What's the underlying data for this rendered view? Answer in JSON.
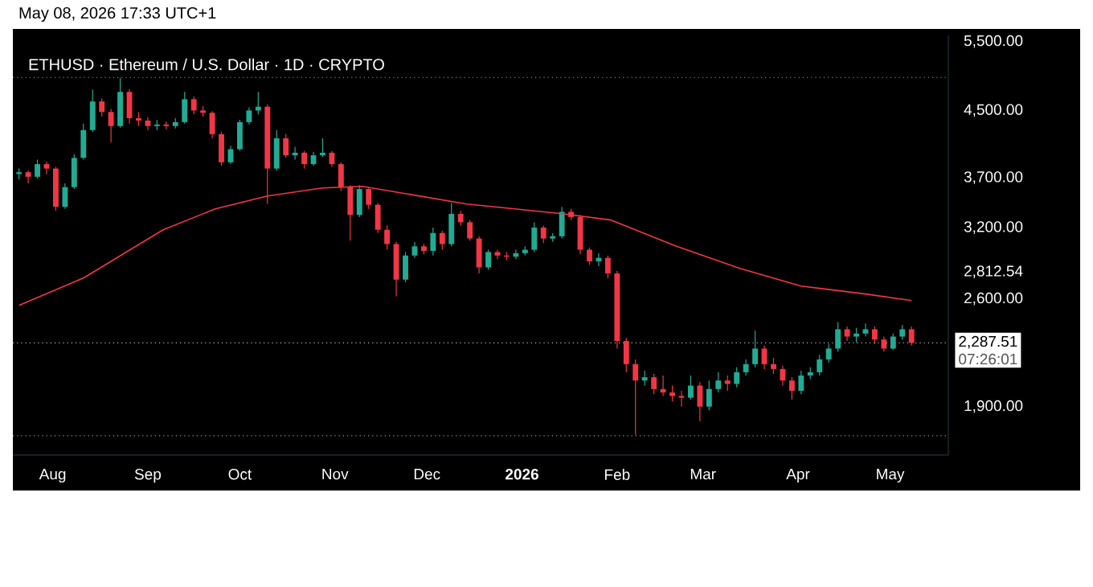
{
  "chart_data": {
    "type": "candlestick",
    "title": "ETHUSD · Ethereum / U.S. Dollar · 1D · CRYPTO",
    "annotations": [
      "May 08, 2026 17:33 UTC+1",
      "07:26:01"
    ],
    "log": true,
    "xlim": [
      "2025-07-19",
      "2026-05-20"
    ],
    "xticks": [
      {
        "value": "2025-08-01",
        "label": "Aug"
      },
      {
        "value": "2025-09-01",
        "label": "Sep"
      },
      {
        "value": "2025-10-01",
        "label": "Oct"
      },
      {
        "value": "2025-11-01",
        "label": "Nov"
      },
      {
        "value": "2025-12-01",
        "label": "Dec"
      },
      {
        "value": "2026-01-01",
        "label": "2026"
      },
      {
        "value": "2026-02-01",
        "label": "Feb"
      },
      {
        "value": "2026-03-01",
        "label": "Mar"
      },
      {
        "value": "2026-04-01",
        "label": "Apr"
      },
      {
        "value": "2026-05-01",
        "label": "May"
      }
    ],
    "ylim": [
      1650,
      5600
    ],
    "yticks": [
      {
        "value": 1900,
        "label": "1,900.00"
      },
      {
        "value": 2600,
        "label": "2,600.00"
      },
      {
        "value": 2812.54,
        "label": "2,812.54"
      },
      {
        "value": 3200,
        "label": "3,200.00"
      },
      {
        "value": 3700,
        "label": "3,700.00"
      },
      {
        "value": 4500,
        "label": "4,500.00"
      },
      {
        "value": 5500,
        "label": "5,500.00"
      }
    ],
    "ref_lines": [
      {
        "axis": "y",
        "value": 2287.51,
        "label": "2,287.51",
        "color": "#c8c8c8",
        "line_style": "dotted"
      },
      {
        "axis": "y",
        "value": 4955,
        "label": null,
        "color": "#9598a1",
        "line_style": "dotted"
      },
      {
        "axis": "y",
        "value": 1746,
        "label": null,
        "color": "#9598a1",
        "line_style": "dotted"
      }
    ],
    "x": [
      "2025-07-21",
      "2025-07-24",
      "2025-07-27",
      "2025-07-30",
      "2025-08-02",
      "2025-08-05",
      "2025-08-08",
      "2025-08-11",
      "2025-08-14",
      "2025-08-17",
      "2025-08-20",
      "2025-08-23",
      "2025-08-26",
      "2025-08-29",
      "2025-09-01",
      "2025-09-04",
      "2025-09-07",
      "2025-09-10",
      "2025-09-13",
      "2025-09-16",
      "2025-09-19",
      "2025-09-22",
      "2025-09-25",
      "2025-09-28",
      "2025-10-01",
      "2025-10-04",
      "2025-10-07",
      "2025-10-10",
      "2025-10-13",
      "2025-10-16",
      "2025-10-19",
      "2025-10-22",
      "2025-10-25",
      "2025-10-28",
      "2025-10-31",
      "2025-11-03",
      "2025-11-06",
      "2025-11-09",
      "2025-11-12",
      "2025-11-15",
      "2025-11-18",
      "2025-11-21",
      "2025-11-24",
      "2025-11-27",
      "2025-11-30",
      "2025-12-03",
      "2025-12-06",
      "2025-12-09",
      "2025-12-12",
      "2025-12-15",
      "2025-12-18",
      "2025-12-21",
      "2025-12-24",
      "2025-12-27",
      "2025-12-30",
      "2026-01-02",
      "2026-01-05",
      "2026-01-08",
      "2026-01-11",
      "2026-01-14",
      "2026-01-17",
      "2026-01-20",
      "2026-01-23",
      "2026-01-26",
      "2026-01-29",
      "2026-02-01",
      "2026-02-04",
      "2026-02-07",
      "2026-02-10",
      "2026-02-13",
      "2026-02-16",
      "2026-02-19",
      "2026-02-22",
      "2026-02-25",
      "2026-02-28",
      "2026-03-03",
      "2026-03-06",
      "2026-03-09",
      "2026-03-12",
      "2026-03-15",
      "2026-03-18",
      "2026-03-21",
      "2026-03-24",
      "2026-03-27",
      "2026-03-30",
      "2026-04-02",
      "2026-04-05",
      "2026-04-08",
      "2026-04-11",
      "2026-04-14",
      "2026-04-17",
      "2026-04-20",
      "2026-04-23",
      "2026-04-26",
      "2026-04-29",
      "2026-05-02",
      "2026-05-05",
      "2026-05-08"
    ],
    "ohlc": [
      [
        3740,
        3800,
        3680,
        3760
      ],
      [
        3760,
        3780,
        3640,
        3710
      ],
      [
        3710,
        3900,
        3690,
        3850
      ],
      [
        3850,
        3880,
        3740,
        3800
      ],
      [
        3800,
        3820,
        3360,
        3400
      ],
      [
        3400,
        3640,
        3380,
        3600
      ],
      [
        3600,
        3960,
        3580,
        3920
      ],
      [
        3920,
        4330,
        3900,
        4250
      ],
      [
        4250,
        4780,
        4230,
        4620
      ],
      [
        4620,
        4660,
        4420,
        4480
      ],
      [
        4480,
        4520,
        4100,
        4300
      ],
      [
        4300,
        4950,
        4280,
        4750
      ],
      [
        4750,
        4790,
        4330,
        4400
      ],
      [
        4400,
        4480,
        4300,
        4370
      ],
      [
        4370,
        4410,
        4250,
        4300
      ],
      [
        4300,
        4380,
        4250,
        4320
      ],
      [
        4320,
        4360,
        4260,
        4300
      ],
      [
        4300,
        4400,
        4270,
        4350
      ],
      [
        4350,
        4750,
        4330,
        4650
      ],
      [
        4650,
        4690,
        4450,
        4500
      ],
      [
        4500,
        4560,
        4420,
        4470
      ],
      [
        4470,
        4490,
        4150,
        4200
      ],
      [
        4200,
        4230,
        3830,
        3870
      ],
      [
        3870,
        4060,
        3850,
        4020
      ],
      [
        4020,
        4380,
        4000,
        4350
      ],
      [
        4350,
        4540,
        4320,
        4500
      ],
      [
        4500,
        4750,
        4450,
        4550
      ],
      [
        4550,
        4580,
        3430,
        3800
      ],
      [
        3800,
        4250,
        3780,
        4150
      ],
      [
        4150,
        4200,
        3920,
        3950
      ],
      [
        3950,
        4050,
        3900,
        3980
      ],
      [
        3980,
        4000,
        3800,
        3850
      ],
      [
        3850,
        3990,
        3830,
        3950
      ],
      [
        3950,
        4150,
        3930,
        3980
      ],
      [
        3980,
        4000,
        3820,
        3850
      ],
      [
        3850,
        3870,
        3560,
        3600
      ],
      [
        3600,
        3620,
        3080,
        3320
      ],
      [
        3320,
        3620,
        3300,
        3580
      ],
      [
        3580,
        3600,
        3380,
        3420
      ],
      [
        3420,
        3440,
        3150,
        3180
      ],
      [
        3180,
        3220,
        3000,
        3050
      ],
      [
        3050,
        3070,
        2620,
        2750
      ],
      [
        2750,
        2980,
        2730,
        2950
      ],
      [
        2950,
        3070,
        2930,
        3030
      ],
      [
        3030,
        3050,
        2960,
        2990
      ],
      [
        2990,
        3200,
        2950,
        3150
      ],
      [
        3150,
        3170,
        3000,
        3050
      ],
      [
        3050,
        3440,
        3030,
        3330
      ],
      [
        3330,
        3360,
        3220,
        3250
      ],
      [
        3250,
        3270,
        3080,
        3100
      ],
      [
        3100,
        3120,
        2800,
        2850
      ],
      [
        2850,
        3000,
        2830,
        2980
      ],
      [
        2980,
        3000,
        2920,
        2950
      ],
      [
        2950,
        2980,
        2910,
        2940
      ],
      [
        2940,
        3000,
        2920,
        2970
      ],
      [
        2970,
        3030,
        2950,
        3000
      ],
      [
        3000,
        3250,
        2980,
        3200
      ],
      [
        3200,
        3220,
        3060,
        3100
      ],
      [
        3100,
        3150,
        3070,
        3120
      ],
      [
        3120,
        3400,
        3100,
        3350
      ],
      [
        3350,
        3380,
        3270,
        3300
      ],
      [
        3300,
        3320,
        2960,
        3000
      ],
      [
        3000,
        3020,
        2870,
        2900
      ],
      [
        2900,
        2970,
        2860,
        2930
      ],
      [
        2930,
        2950,
        2760,
        2800
      ],
      [
        2800,
        2820,
        2250,
        2300
      ],
      [
        2300,
        2320,
        2100,
        2150
      ],
      [
        2150,
        2180,
        1750,
        2050
      ],
      [
        2050,
        2110,
        2020,
        2070
      ],
      [
        2070,
        2090,
        1970,
        2000
      ],
      [
        2000,
        2080,
        1960,
        1980
      ],
      [
        1980,
        2020,
        1930,
        1960
      ],
      [
        1960,
        1990,
        1900,
        1950
      ],
      [
        1950,
        2080,
        1940,
        2020
      ],
      [
        2020,
        2040,
        1820,
        1900
      ],
      [
        1900,
        2050,
        1880,
        2000
      ],
      [
        2000,
        2100,
        1980,
        2050
      ],
      [
        2050,
        2080,
        1990,
        2030
      ],
      [
        2030,
        2130,
        2010,
        2100
      ],
      [
        2100,
        2180,
        2080,
        2150
      ],
      [
        2150,
        2370,
        2130,
        2250
      ],
      [
        2250,
        2270,
        2120,
        2150
      ],
      [
        2150,
        2190,
        2090,
        2120
      ],
      [
        2120,
        2140,
        2020,
        2050
      ],
      [
        2050,
        2070,
        1940,
        1990
      ],
      [
        1990,
        2110,
        1970,
        2080
      ],
      [
        2080,
        2130,
        2060,
        2100
      ],
      [
        2100,
        2210,
        2080,
        2180
      ],
      [
        2180,
        2280,
        2160,
        2250
      ],
      [
        2250,
        2430,
        2230,
        2380
      ],
      [
        2380,
        2400,
        2300,
        2330
      ],
      [
        2330,
        2390,
        2290,
        2350
      ],
      [
        2350,
        2420,
        2330,
        2380
      ],
      [
        2380,
        2400,
        2280,
        2310
      ],
      [
        2310,
        2330,
        2230,
        2250
      ],
      [
        2250,
        2350,
        2240,
        2330
      ],
      [
        2330,
        2410,
        2310,
        2380
      ],
      [
        2380,
        2400,
        2270,
        2287.51
      ]
    ],
    "colors": [
      "#22ab94",
      "#f23645",
      "#22ab94",
      "#f23645",
      "#f23645",
      "#22ab94",
      "#22ab94",
      "#22ab94",
      "#22ab94",
      "#f23645",
      "#f23645",
      "#22ab94",
      "#f23645",
      "#f23645",
      "#f23645",
      "#22ab94",
      "#f23645",
      "#22ab94",
      "#22ab94",
      "#f23645",
      "#f23645",
      "#f23645",
      "#f23645",
      "#22ab94",
      "#22ab94",
      "#22ab94",
      "#22ab94",
      "#f23645",
      "#22ab94",
      "#f23645",
      "#22ab94",
      "#f23645",
      "#22ab94",
      "#22ab94",
      "#f23645",
      "#f23645",
      "#f23645",
      "#22ab94",
      "#f23645",
      "#f23645",
      "#f23645",
      "#f23645",
      "#22ab94",
      "#22ab94",
      "#f23645",
      "#22ab94",
      "#f23645",
      "#22ab94",
      "#f23645",
      "#f23645",
      "#f23645",
      "#22ab94",
      "#f23645",
      "#f23645",
      "#22ab94",
      "#22ab94",
      "#22ab94",
      "#f23645",
      "#22ab94",
      "#22ab94",
      "#f23645",
      "#f23645",
      "#f23645",
      "#22ab94",
      "#f23645",
      "#f23645",
      "#f23645",
      "#f23645",
      "#22ab94",
      "#f23645",
      "#f23645",
      "#f23645",
      "#f23645",
      "#22ab94",
      "#f23645",
      "#22ab94",
      "#22ab94",
      "#f23645",
      "#22ab94",
      "#22ab94",
      "#22ab94",
      "#f23645",
      "#f23645",
      "#f23645",
      "#f23645",
      "#22ab94",
      "#22ab94",
      "#22ab94",
      "#22ab94",
      "#22ab94",
      "#f23645",
      "#22ab94",
      "#22ab94",
      "#f23645",
      "#f23645",
      "#22ab94",
      "#22ab94",
      "#f23645"
    ],
    "series": [
      {
        "type": "line",
        "color": "#f23645",
        "x": [
          "2025-07-21",
          "2025-08-11",
          "2025-09-06",
          "2025-09-23",
          "2025-10-10",
          "2025-10-28",
          "2025-11-10",
          "2025-12-14",
          "2026-01-14",
          "2026-01-30",
          "2026-02-20",
          "2026-03-13",
          "2026-04-02",
          "2026-04-23",
          "2026-05-08"
        ],
        "values": [
          2551,
          2763,
          3180,
          3379,
          3508,
          3591,
          3608,
          3427,
          3332,
          3271,
          3034,
          2842,
          2699,
          2637,
          2588
        ]
      }
    ]
  }
}
